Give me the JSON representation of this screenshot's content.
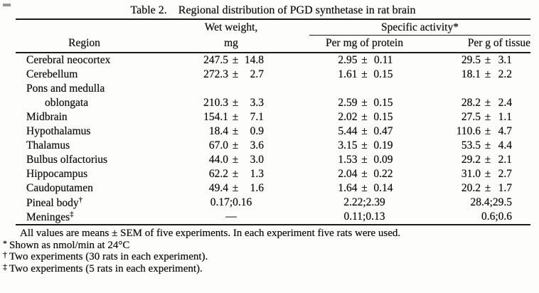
{
  "title": {
    "label": "Table 2.",
    "caption": "Regional distribution of PGD synthetase in rat brain"
  },
  "table": {
    "pm_symbol": "±",
    "columns": {
      "region": "Region",
      "wet_line1": "Wet weight,",
      "wet_line2": "mg",
      "specific_group": "Specific activity*",
      "protein": "Per mg of protein",
      "tissue": "Per g of tissue"
    },
    "rows": [
      {
        "region": "Cerebral neocortex",
        "wet": {
          "v": "247.5",
          "e": "14.8"
        },
        "protein": {
          "v": "2.95",
          "e": "0.11"
        },
        "tissue": {
          "v": "29.5",
          "e": "3.1"
        }
      },
      {
        "region": "Cerebellum",
        "wet": {
          "v": "272.3",
          "e": "2.7"
        },
        "protein": {
          "v": "1.61",
          "e": "0.15"
        },
        "tissue": {
          "v": "18.1",
          "e": "2.2"
        }
      },
      {
        "region": "Pons and medulla"
      },
      {
        "region": "oblongata",
        "indent": true,
        "wet": {
          "v": "210.3",
          "e": "3.3"
        },
        "protein": {
          "v": "2.59",
          "e": "0.15"
        },
        "tissue": {
          "v": "28.2",
          "e": "2.4"
        }
      },
      {
        "region": "Midbrain",
        "wet": {
          "v": "154.1",
          "e": "7.1"
        },
        "protein": {
          "v": "2.02",
          "e": "0.15"
        },
        "tissue": {
          "v": "27.5",
          "e": "1.1"
        }
      },
      {
        "region": "Hypothalamus",
        "wet": {
          "v": "18.4",
          "e": "0.9"
        },
        "protein": {
          "v": "5.44",
          "e": "0.47"
        },
        "tissue": {
          "v": "110.6",
          "e": "4.7"
        }
      },
      {
        "region": "Thalamus",
        "wet": {
          "v": "67.0",
          "e": "3.6"
        },
        "protein": {
          "v": "3.15",
          "e": "0.19"
        },
        "tissue": {
          "v": "53.5",
          "e": "4.4"
        }
      },
      {
        "region": "Bulbus olfactorius",
        "wet": {
          "v": "44.0",
          "e": "3.0"
        },
        "protein": {
          "v": "1.53",
          "e": "0.09"
        },
        "tissue": {
          "v": "29.2",
          "e": "2.1"
        }
      },
      {
        "region": "Hippocampus",
        "wet": {
          "v": "62.2",
          "e": "1.3"
        },
        "protein": {
          "v": "2.04",
          "e": "0.22"
        },
        "tissue": {
          "v": "31.0",
          "e": "2.7"
        }
      },
      {
        "region": "Caudoputamen",
        "wet": {
          "v": "49.4",
          "e": "1.6"
        },
        "protein": {
          "v": "1.64",
          "e": "0.14"
        },
        "tissue": {
          "v": "20.2",
          "e": "1.7"
        }
      },
      {
        "region": "Pineal body",
        "sup": "†",
        "wet": {
          "t": "0.17;0.16"
        },
        "protein": {
          "t": "2.22;2.39"
        },
        "tissue": {
          "t": "28.4;29.5"
        }
      },
      {
        "region": "Meninges",
        "sup": "‡",
        "wet": {
          "t": "—"
        },
        "protein": {
          "t": "0.11;0.13"
        },
        "tissue": {
          "t": "0.6;0.6"
        }
      }
    ]
  },
  "footnotes": [
    {
      "marker": "",
      "indent": true,
      "text": "All values are means ± SEM of five experiments. In each experiment five rats were used."
    },
    {
      "marker": "*",
      "text": "Shown as nmol/min at 24°C"
    },
    {
      "marker": "†",
      "text": "Two experiments (30 rats in each experiment)."
    },
    {
      "marker": "‡",
      "text": "Two experiments (5 rats in each experiment)."
    }
  ]
}
